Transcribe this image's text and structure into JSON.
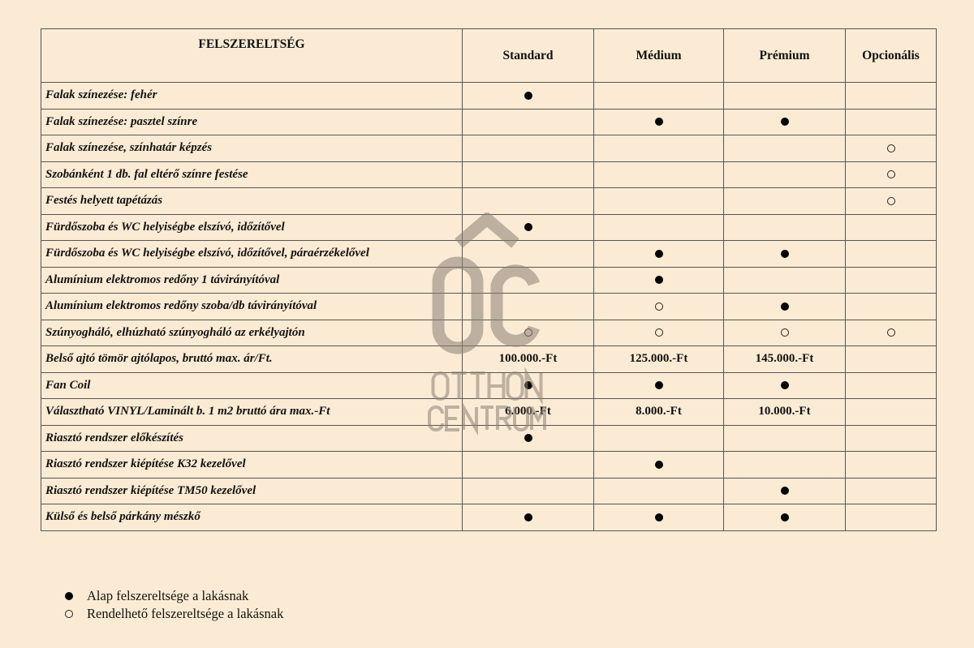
{
  "table": {
    "headers": [
      "FELSZERELTSÉG",
      "Standard",
      "Médium",
      "Prémium",
      "Opcionális"
    ],
    "rows": [
      {
        "label": "Falak színezése: fehér",
        "cells": [
          "full",
          "",
          "",
          ""
        ]
      },
      {
        "label": "Falak színezése: pasztel színre",
        "cells": [
          "",
          "full",
          "full",
          ""
        ]
      },
      {
        "label": "Falak színezése, színhatár képzés",
        "cells": [
          "",
          "",
          "",
          "open"
        ]
      },
      {
        "label": "Szobánként 1 db. fal eltérő színre festése",
        "cells": [
          "",
          "",
          "",
          "open"
        ]
      },
      {
        "label": "Festés helyett tapétázás",
        "cells": [
          "",
          "",
          "",
          "open"
        ]
      },
      {
        "label": "Fürdőszoba és WC helyiségbe elszívó, időzítővel",
        "cells": [
          "full",
          "",
          "",
          ""
        ]
      },
      {
        "label": "Fürdőszoba és WC helyiségbe elszívó, időzítővel, páraérzékelővel",
        "cells": [
          "",
          "full",
          "full",
          ""
        ]
      },
      {
        "label": "Alumínium elektromos redőny 1 távirányítóval",
        "cells": [
          "",
          "full",
          "",
          ""
        ]
      },
      {
        "label": "Alumínium elektromos redőny szoba/db távirányítóval",
        "cells": [
          "",
          "open",
          "full",
          ""
        ]
      },
      {
        "label": "Szúnyogháló, elhúzható szúnyogháló az erkélyajtón",
        "cells": [
          "open",
          "open",
          "open",
          "open"
        ]
      },
      {
        "label": "Belső ajtó tömör ajtólapos, bruttó max. ár/Ft.",
        "cells": [
          "100.000.-Ft",
          "125.000.-Ft",
          "145.000.-Ft",
          ""
        ]
      },
      {
        "label": "Fan Coil",
        "cells": [
          "full",
          "full",
          "full",
          ""
        ]
      },
      {
        "label": "Választható VINYL/Laminált b. 1 m2 bruttó ára max.-Ft",
        "cells": [
          "6.000.-Ft",
          "8.000.-Ft",
          "10.000.-Ft",
          ""
        ]
      },
      {
        "label": "Riasztó rendszer előkészítés",
        "cells": [
          "full",
          "",
          "",
          ""
        ]
      },
      {
        "label": "Riasztó rendszer kiépítése K32 kezelővel",
        "cells": [
          "",
          "full",
          "",
          ""
        ]
      },
      {
        "label": "Riasztó rendszer kiépítése TM50 kezelővel",
        "cells": [
          "",
          "",
          "full",
          ""
        ]
      },
      {
        "label": "Külső és belső párkány mészkő",
        "cells": [
          "full",
          "full",
          "full",
          ""
        ]
      }
    ]
  },
  "legend": {
    "full": "Alap felszereltsége a lakásnak",
    "open": "Rendelhető felszereltsége a lakásnak"
  },
  "watermark": {
    "mark": "ÔC",
    "line1": "OTTHON",
    "line2": "CENTRUM",
    "color": "#8a8177"
  },
  "colors": {
    "background": "#fcebd4",
    "border": "#555555"
  }
}
